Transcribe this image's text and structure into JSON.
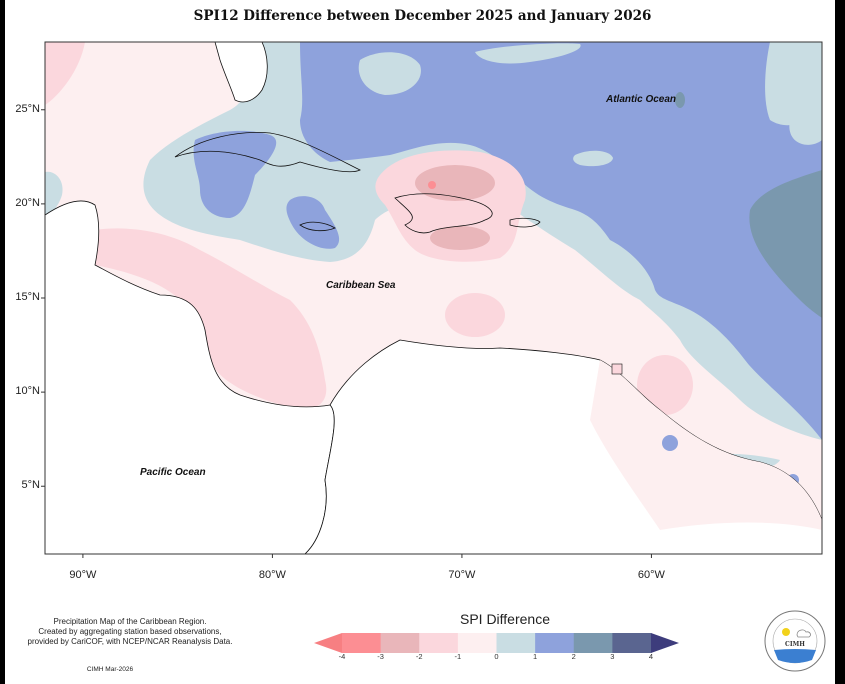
{
  "title": "SPI12 Difference between December 2025 and January 2026",
  "map": {
    "region": "Caribbean",
    "lon_range": [
      -92,
      -51
    ],
    "lat_range": [
      1.4,
      28.6
    ],
    "y_ticks": [
      {
        "value": 25,
        "label": "25°N"
      },
      {
        "value": 20,
        "label": "20°N"
      },
      {
        "value": 15,
        "label": "15°N"
      },
      {
        "value": 10,
        "label": "10°N"
      },
      {
        "value": 5,
        "label": "5°N"
      }
    ],
    "x_ticks": [
      {
        "value": -90,
        "label": "90°W"
      },
      {
        "value": -80,
        "label": "80°W"
      },
      {
        "value": -70,
        "label": "70°W"
      },
      {
        "value": -60,
        "label": "60°W"
      }
    ],
    "labels": {
      "atlantic": "Atlantic Ocean",
      "caribbean": "Caribbean Sea",
      "pacific": "Pacific Ocean"
    }
  },
  "legend": {
    "title": "SPI Difference",
    "ticks": [
      "-4",
      "-3",
      "-2",
      "-1",
      "0",
      "1",
      "2",
      "3",
      "4"
    ],
    "bins": [
      {
        "range": "< -4",
        "color": "#f77f82"
      },
      {
        "range": "-4 to -3",
        "color": "#fc8e93"
      },
      {
        "range": "-3 to -2",
        "color": "#e9b6ba"
      },
      {
        "range": "-2 to -1",
        "color": "#fbd7dd"
      },
      {
        "range": "-1 to 0",
        "color": "#fdeff0"
      },
      {
        "range": "0 to 1",
        "color": "#c9dde3"
      },
      {
        "range": "1 to 2",
        "color": "#8ea2dc"
      },
      {
        "range": "2 to 3",
        "color": "#7a98ae"
      },
      {
        "range": "3 to 4",
        "color": "#5a6590"
      },
      {
        "range": "> 4",
        "color": "#3d3c7c"
      }
    ]
  },
  "footnote": {
    "line1": "Precipitation Map of the Caribbean Region.",
    "line2": "Created by aggregating station based observations,",
    "line3": "provided by CariCOF, with NCEP/NCAR Reanalysis Data.",
    "credit": "CIMH Mar-2026"
  },
  "logo": {
    "text": "CIMH",
    "ring_text": "Caribbean Institute for Meteorology and Hydrology"
  }
}
